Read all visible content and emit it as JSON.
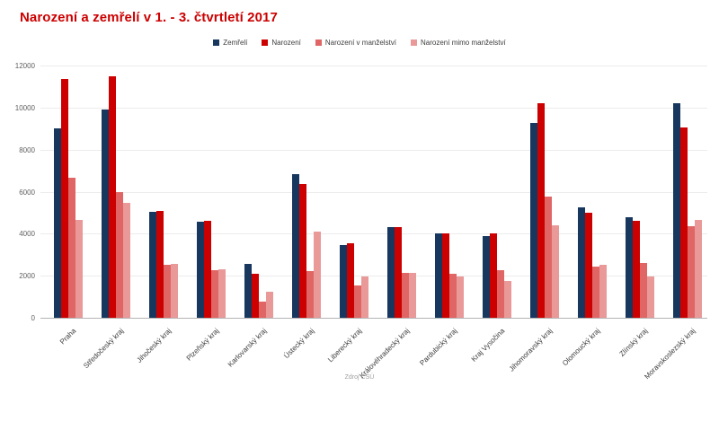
{
  "page": {
    "background": "#ffffff"
  },
  "chart_data": {
    "type": "bar",
    "title": "Narození a zemřelí v 1. - 3. čtvrtletí 2017",
    "title_color": "#cc0000",
    "source": "Zdroj ČSÚ",
    "categories": [
      "Praha",
      "Středočeský kraj",
      "Jihočeský kraj",
      "Plzeňský kraj",
      "Karlovarský kraj",
      "Ústecký kraj",
      "Liberecký kraj",
      "Královéhradecký kraj",
      "Pardubický kraj",
      "Kraj Vysočina",
      "Jihomoravský kraj",
      "Olomoucký kraj",
      "Zlínský kraj",
      "Moravskoslezský kraj"
    ],
    "series": [
      {
        "name": "Zemřelí",
        "color": "#17375e",
        "values": [
          9000,
          9900,
          5050,
          4550,
          2550,
          6850,
          3450,
          4300,
          4000,
          3900,
          9250,
          5250,
          4800,
          10200
        ]
      },
      {
        "name": "Narození",
        "color": "#cc0000",
        "values": [
          11350,
          11500,
          5100,
          4600,
          2100,
          6350,
          3550,
          4300,
          4000,
          4000,
          10200,
          5000,
          4600,
          9050
        ]
      },
      {
        "name": "Narození v manželství",
        "color": "#e06666",
        "values": [
          6650,
          6000,
          2500,
          2250,
          750,
          2200,
          1550,
          2150,
          2100,
          2250,
          5750,
          2450,
          2600,
          4350
        ]
      },
      {
        "name": "Narození mimo manželství",
        "color": "#ea9999",
        "values": [
          4650,
          5450,
          2550,
          2300,
          1250,
          4100,
          1950,
          2150,
          1950,
          1750,
          4400,
          2500,
          1950,
          4650
        ]
      }
    ],
    "ylim": [
      0,
      12000
    ],
    "yticks": [
      0,
      2000,
      4000,
      6000,
      8000,
      10000,
      12000
    ],
    "grid": true,
    "legend_position": "top",
    "axis_colors": {
      "grid": "#ececec",
      "baseline": "#b3b3b3",
      "y_text": "#616161",
      "x_text": "#3c3c3c"
    }
  }
}
